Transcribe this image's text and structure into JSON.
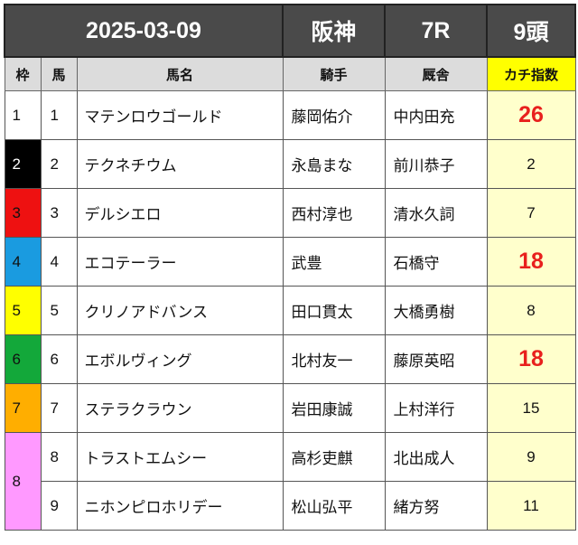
{
  "header": {
    "date": "2025-03-09",
    "venue": "阪神",
    "race": "7R",
    "runners": "9頭"
  },
  "columns": {
    "waku": "枠",
    "uma": "馬",
    "name": "馬名",
    "jockey": "騎手",
    "trainer": "厩舎",
    "index": "カチ指数"
  },
  "waku_colors": {
    "1": "#ffffff",
    "2": "#000000",
    "3": "#ee1111",
    "4": "#1a9be0",
    "5": "#ffff00",
    "6": "#13a83a",
    "7": "#ffae00",
    "8": "#ff99ff"
  },
  "waku_text_colors": {
    "1": "#111111",
    "2": "#ffffff",
    "3": "#111111",
    "4": "#111111",
    "5": "#111111",
    "6": "#111111",
    "7": "#111111",
    "8": "#111111"
  },
  "rows": [
    {
      "waku": "1",
      "uma": "1",
      "name": "マテンロウゴールド",
      "jockey": "藤岡佑介",
      "trainer": "中内田充",
      "index": "26",
      "hot": true
    },
    {
      "waku": "2",
      "uma": "2",
      "name": "テクネチウム",
      "jockey": "永島まな",
      "trainer": "前川恭子",
      "index": "2",
      "hot": false
    },
    {
      "waku": "3",
      "uma": "3",
      "name": "デルシエロ",
      "jockey": "西村淳也",
      "trainer": "清水久詞",
      "index": "7",
      "hot": false
    },
    {
      "waku": "4",
      "uma": "4",
      "name": "エコテーラー",
      "jockey": "武豊",
      "trainer": "石橋守",
      "index": "18",
      "hot": true
    },
    {
      "waku": "5",
      "uma": "5",
      "name": "クリノアドバンス",
      "jockey": "田口貫太",
      "trainer": "大橋勇樹",
      "index": "8",
      "hot": false
    },
    {
      "waku": "6",
      "uma": "6",
      "name": "エボルヴィング",
      "jockey": "北村友一",
      "trainer": "藤原英昭",
      "index": "18",
      "hot": true
    },
    {
      "waku": "7",
      "uma": "7",
      "name": "ステラクラウン",
      "jockey": "岩田康誠",
      "trainer": "上村洋行",
      "index": "15",
      "hot": false
    },
    {
      "waku": "8",
      "uma": "8",
      "name": "トラストエムシー",
      "jockey": "高杉吏麒",
      "trainer": "北出成人",
      "index": "9",
      "hot": false
    },
    {
      "waku": "8",
      "uma": "9",
      "name": "ニホンピロホリデー",
      "jockey": "松山弘平",
      "trainer": "緒方努",
      "index": "11",
      "hot": false
    }
  ]
}
